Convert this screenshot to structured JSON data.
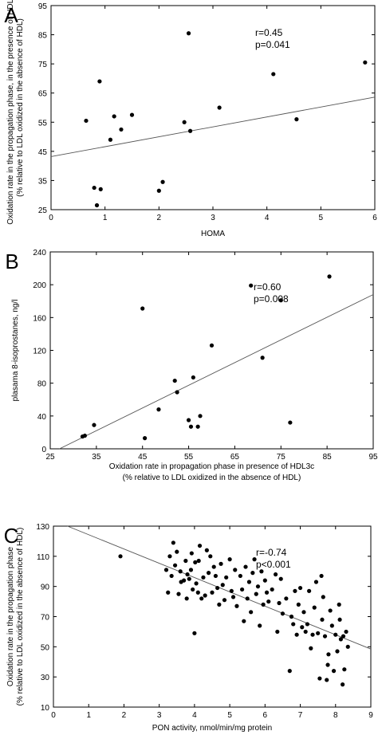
{
  "chart_data": [
    {
      "type": "scatter",
      "panel": "A",
      "xlabel": "HOMA",
      "ylabel": [
        "Oxidation rate in the propagation phase, in the presence of HDL3c",
        "(% relative to LDL oxidized in the absence of HDL)"
      ],
      "xlim": [
        0,
        6
      ],
      "ylim": [
        25,
        95
      ],
      "xticks": [
        0,
        1,
        2,
        3,
        4,
        5,
        6
      ],
      "yticks": [
        25,
        35,
        45,
        55,
        65,
        75,
        85,
        95
      ],
      "annotations": [
        "r=0.45",
        "p=0.041"
      ],
      "grid": false,
      "points": [
        [
          0.65,
          55.5
        ],
        [
          0.8,
          32.5
        ],
        [
          0.85,
          26.5
        ],
        [
          0.9,
          69
        ],
        [
          0.92,
          32
        ],
        [
          1.1,
          49
        ],
        [
          1.17,
          57
        ],
        [
          1.3,
          52.5
        ],
        [
          1.5,
          57.5
        ],
        [
          2.0,
          31.5
        ],
        [
          2.07,
          34.5
        ],
        [
          2.47,
          55
        ],
        [
          2.55,
          85.5
        ],
        [
          2.58,
          52
        ],
        [
          3.12,
          60
        ],
        [
          4.12,
          71.5
        ],
        [
          4.55,
          56
        ],
        [
          5.82,
          75.5
        ]
      ],
      "regression": [
        [
          0,
          43.2
        ],
        [
          6,
          63.6
        ]
      ]
    },
    {
      "type": "scatter",
      "panel": "B",
      "xlabel": [
        "Oxidation rate in propagation phase in presence of HDL3c",
        "(% relative to LDL oxidized in the absence of HDL)"
      ],
      "ylabel": "plasama 8-isoprostanes, ng/l",
      "xlim": [
        25,
        95
      ],
      "ylim": [
        0,
        240
      ],
      "xticks": [
        25,
        35,
        45,
        55,
        65,
        75,
        85,
        95
      ],
      "yticks": [
        0,
        40,
        80,
        120,
        160,
        200,
        240
      ],
      "annotations": [
        "r=0.60",
        "p=0.008"
      ],
      "grid": false,
      "points": [
        [
          32,
          15
        ],
        [
          32.5,
          16
        ],
        [
          34.5,
          29
        ],
        [
          45,
          171
        ],
        [
          45.5,
          13
        ],
        [
          48.5,
          48
        ],
        [
          52,
          83
        ],
        [
          52.5,
          69
        ],
        [
          55,
          35
        ],
        [
          55.5,
          27
        ],
        [
          56,
          87
        ],
        [
          57,
          27
        ],
        [
          57.5,
          40
        ],
        [
          60,
          126
        ],
        [
          68.5,
          199
        ],
        [
          71,
          111
        ],
        [
          75,
          181
        ],
        [
          77,
          32
        ],
        [
          85.5,
          210
        ]
      ],
      "regression": [
        [
          27,
          0
        ],
        [
          95,
          188
        ]
      ]
    },
    {
      "type": "scatter",
      "panel": "C",
      "xlabel": "PON activity, nmol/min/mg protein",
      "ylabel": [
        "Oxidation rate in the propagation phase",
        "(% relative to LDL oxidized in the absence of HDL)"
      ],
      "xlim": [
        0,
        9
      ],
      "ylim": [
        10,
        130
      ],
      "xticks": [
        0,
        1,
        2,
        3,
        4,
        5,
        6,
        7,
        8,
        9
      ],
      "yticks": [
        10,
        30,
        50,
        70,
        90,
        110,
        130
      ],
      "annotations": [
        "r=-0.74",
        "p<0.001"
      ],
      "grid": false,
      "points": [
        [
          1.9,
          110
        ],
        [
          3.2,
          101
        ],
        [
          3.25,
          86
        ],
        [
          3.3,
          110
        ],
        [
          3.35,
          97
        ],
        [
          3.4,
          119
        ],
        [
          3.45,
          104
        ],
        [
          3.5,
          113
        ],
        [
          3.55,
          85
        ],
        [
          3.6,
          100
        ],
        [
          3.62,
          93
        ],
        [
          3.7,
          94
        ],
        [
          3.75,
          107
        ],
        [
          3.78,
          82
        ],
        [
          3.8,
          98
        ],
        [
          3.85,
          95
        ],
        [
          3.9,
          101
        ],
        [
          3.92,
          112
        ],
        [
          3.95,
          88
        ],
        [
          4.0,
          59
        ],
        [
          4.02,
          106
        ],
        [
          4.05,
          92
        ],
        [
          4.1,
          86
        ],
        [
          4.12,
          107
        ],
        [
          4.15,
          117
        ],
        [
          4.2,
          82
        ],
        [
          4.25,
          96
        ],
        [
          4.3,
          84
        ],
        [
          4.35,
          114
        ],
        [
          4.4,
          99
        ],
        [
          4.45,
          110
        ],
        [
          4.5,
          86
        ],
        [
          4.55,
          103
        ],
        [
          4.6,
          97
        ],
        [
          4.65,
          89
        ],
        [
          4.7,
          78
        ],
        [
          4.75,
          105
        ],
        [
          4.8,
          91
        ],
        [
          4.85,
          81
        ],
        [
          4.9,
          96
        ],
        [
          5.0,
          108
        ],
        [
          5.05,
          87
        ],
        [
          5.1,
          83
        ],
        [
          5.15,
          101
        ],
        [
          5.2,
          77
        ],
        [
          5.3,
          97
        ],
        [
          5.35,
          88
        ],
        [
          5.4,
          67
        ],
        [
          5.45,
          103
        ],
        [
          5.5,
          82
        ],
        [
          5.55,
          93
        ],
        [
          5.6,
          73
        ],
        [
          5.65,
          99
        ],
        [
          5.7,
          108
        ],
        [
          5.75,
          85
        ],
        [
          5.8,
          90
        ],
        [
          5.85,
          64
        ],
        [
          5.9,
          100
        ],
        [
          5.95,
          78
        ],
        [
          6.0,
          94
        ],
        [
          6.05,
          86
        ],
        [
          6.1,
          80
        ],
        [
          6.2,
          88
        ],
        [
          6.3,
          98
        ],
        [
          6.35,
          60
        ],
        [
          6.4,
          79
        ],
        [
          6.45,
          95
        ],
        [
          6.5,
          72
        ],
        [
          6.6,
          82
        ],
        [
          6.7,
          34
        ],
        [
          6.75,
          70
        ],
        [
          6.8,
          65
        ],
        [
          6.85,
          87
        ],
        [
          6.9,
          58
        ],
        [
          6.95,
          78
        ],
        [
          7.0,
          89
        ],
        [
          7.05,
          63
        ],
        [
          7.1,
          73
        ],
        [
          7.15,
          60
        ],
        [
          7.2,
          65
        ],
        [
          7.25,
          87
        ],
        [
          7.3,
          49
        ],
        [
          7.35,
          58
        ],
        [
          7.4,
          76
        ],
        [
          7.45,
          93
        ],
        [
          7.5,
          59
        ],
        [
          7.55,
          29
        ],
        [
          7.6,
          97
        ],
        [
          7.62,
          68
        ],
        [
          7.65,
          83
        ],
        [
          7.7,
          57
        ],
        [
          7.75,
          28
        ],
        [
          7.78,
          38
        ],
        [
          7.8,
          45
        ],
        [
          7.85,
          74
        ],
        [
          7.9,
          64
        ],
        [
          7.95,
          34
        ],
        [
          8.0,
          58
        ],
        [
          8.05,
          47
        ],
        [
          8.1,
          78
        ],
        [
          8.12,
          68
        ],
        [
          8.15,
          55
        ],
        [
          8.2,
          25
        ],
        [
          8.22,
          57
        ],
        [
          8.25,
          35
        ],
        [
          8.3,
          60
        ],
        [
          8.35,
          50
        ]
      ],
      "regression": [
        [
          0.4,
          130
        ],
        [
          9,
          48.5
        ]
      ]
    }
  ]
}
